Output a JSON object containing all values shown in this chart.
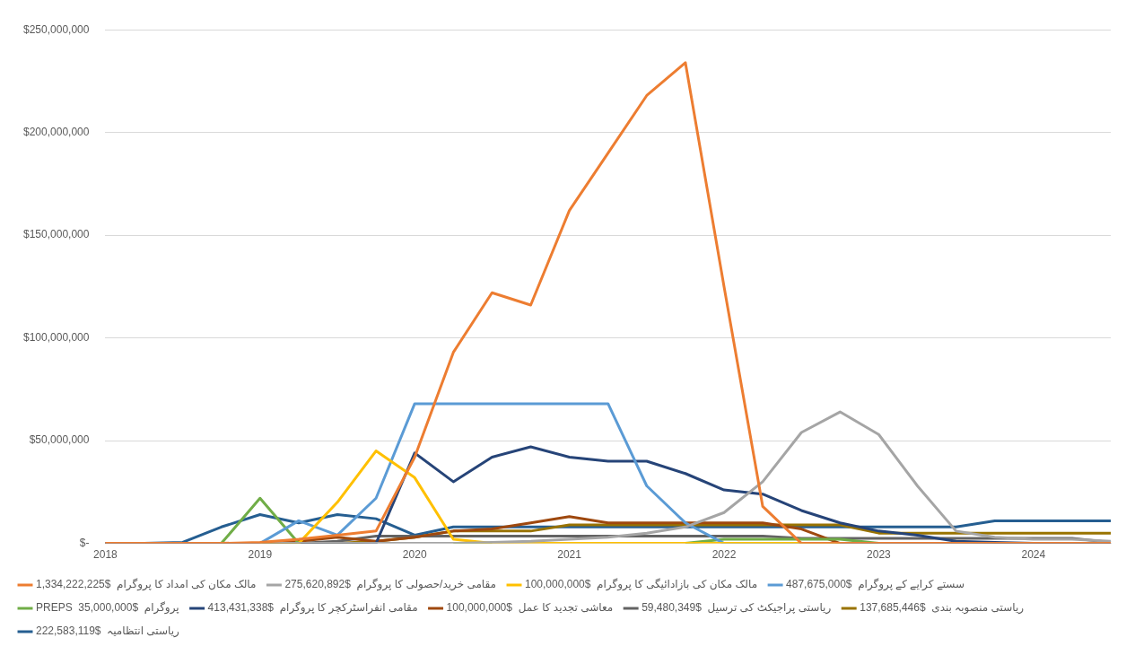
{
  "chart_data": {
    "type": "line",
    "categories": [
      "2018",
      null,
      null,
      null,
      "2019",
      null,
      null,
      null,
      "2020",
      null,
      null,
      null,
      "2021",
      null,
      null,
      null,
      "2022",
      null,
      null,
      null,
      "2023",
      null,
      null,
      null,
      "2024",
      null,
      null
    ],
    "ylim": [
      0,
      250000000
    ],
    "yticks": [
      {
        "value": 0,
        "label": "$-"
      },
      {
        "value": 50000000,
        "label": "$50,000,000"
      },
      {
        "value": 100000000,
        "label": "$100,000,000"
      },
      {
        "value": 150000000,
        "label": "$150,000,000"
      },
      {
        "value": 200000000,
        "label": "$200,000,000"
      },
      {
        "value": 250000000,
        "label": "$250,000,000"
      }
    ],
    "grid": "y",
    "legend": "bottom",
    "marker": "none",
    "line_style": "solid",
    "series": [
      {
        "name": "1,334,222,225$  مالک مکان کی امداد کا پروگرام",
        "color": "#ed7d31",
        "values": [
          0,
          0,
          0,
          0,
          500000,
          2000000,
          4000000,
          6000000,
          42000000,
          93000000,
          122000000,
          116000000,
          162000000,
          190000000,
          218000000,
          234000000,
          125000000,
          18000000,
          0,
          0,
          0,
          0,
          0,
          0,
          0,
          0,
          0
        ]
      },
      {
        "name": "275,620,892$  مقامی خرید/حصولی کا پروگرام",
        "color": "#a5a5a5",
        "values": [
          0,
          0,
          0,
          0,
          0,
          0,
          0,
          0,
          0,
          0,
          500000,
          1000000,
          2000000,
          3000000,
          5000000,
          8000000,
          15000000,
          30000000,
          54000000,
          64000000,
          53000000,
          28000000,
          6000000,
          3000000,
          2000000,
          2000000,
          1000000
        ]
      },
      {
        "name": "100,000,000$  مالک مکان کی بازادائیگی کا پروگرام",
        "color": "#ffc000",
        "values": [
          null,
          null,
          null,
          null,
          0,
          0,
          20000000,
          45000000,
          32000000,
          2000000,
          0,
          0,
          0,
          0,
          0,
          0,
          0,
          0,
          0,
          0,
          null,
          null,
          null,
          null,
          null,
          null,
          null
        ]
      },
      {
        "name": "487,675,000$  سستے کرایے کے پروگرام",
        "color": "#5b9bd5",
        "values": [
          0,
          0,
          0,
          0,
          0,
          11000000,
          4000000,
          22000000,
          68000000,
          68000000,
          68000000,
          68000000,
          68000000,
          68000000,
          28000000,
          10000000,
          0,
          0,
          0,
          0,
          0,
          0,
          0,
          0,
          0,
          0,
          0
        ]
      },
      {
        "name": "PREPS  35,000,000$  پروگرام",
        "color": "#70ad47",
        "values": [
          null,
          null,
          null,
          0,
          22000000,
          0,
          null,
          null,
          null,
          0,
          0,
          null,
          null,
          null,
          null,
          0,
          2000000,
          2000000,
          2000000,
          2000000,
          0,
          null,
          null,
          null,
          null,
          null,
          null
        ]
      },
      {
        "name": "413,431,338$  مقامی انفراسٹرکچر کا پروگرام",
        "color": "#264478",
        "values": [
          0,
          0,
          0,
          0,
          0,
          0,
          0,
          0,
          44000000,
          30000000,
          42000000,
          47000000,
          42000000,
          40000000,
          40000000,
          34000000,
          26000000,
          24000000,
          16000000,
          10000000,
          6000000,
          4000000,
          1000000,
          500000,
          0,
          0,
          0
        ]
      },
      {
        "name": "100,000,000$  معاشی تجدید کا عمل",
        "color": "#9e480e",
        "values": [
          0,
          0,
          0,
          0,
          0,
          1000000,
          3000000,
          1000000,
          3000000,
          6000000,
          7000000,
          10000000,
          13000000,
          10000000,
          10000000,
          10000000,
          10000000,
          10000000,
          7000000,
          0,
          0,
          0,
          0,
          0,
          0,
          0,
          0
        ]
      },
      {
        "name": "59,480,349$  ریاستی پراجیکٹ کی ترسیل",
        "color": "#636363",
        "values": [
          0,
          0,
          0,
          0,
          0,
          0,
          1000000,
          3500000,
          3500000,
          3500000,
          3500000,
          3500000,
          3500000,
          3500000,
          3500000,
          3500000,
          3500000,
          3500000,
          2500000,
          2500000,
          2500000,
          2500000,
          2500000,
          2500000,
          2500000,
          2500000,
          500000
        ]
      },
      {
        "name": "137,685,446$  ریاستی منصوبہ بندی",
        "color": "#997300",
        "values": [
          null,
          null,
          0,
          0,
          0,
          0,
          0,
          1000000,
          3000000,
          6000000,
          6000000,
          6000000,
          9000000,
          9000000,
          9000000,
          9000000,
          9000000,
          9000000,
          9000000,
          9000000,
          5000000,
          5000000,
          5000000,
          5000000,
          5000000,
          5000000,
          5000000
        ]
      },
      {
        "name": "222,583,119$  ریاستی انتظامیہ",
        "color": "#255e91",
        "values": [
          0,
          0,
          500000,
          8000000,
          14000000,
          10000000,
          14000000,
          12000000,
          4000000,
          8000000,
          8000000,
          8000000,
          8000000,
          8000000,
          8000000,
          8000000,
          8000000,
          8000000,
          8000000,
          8000000,
          8000000,
          8000000,
          8000000,
          11000000,
          11000000,
          11000000,
          11000000
        ]
      }
    ]
  }
}
